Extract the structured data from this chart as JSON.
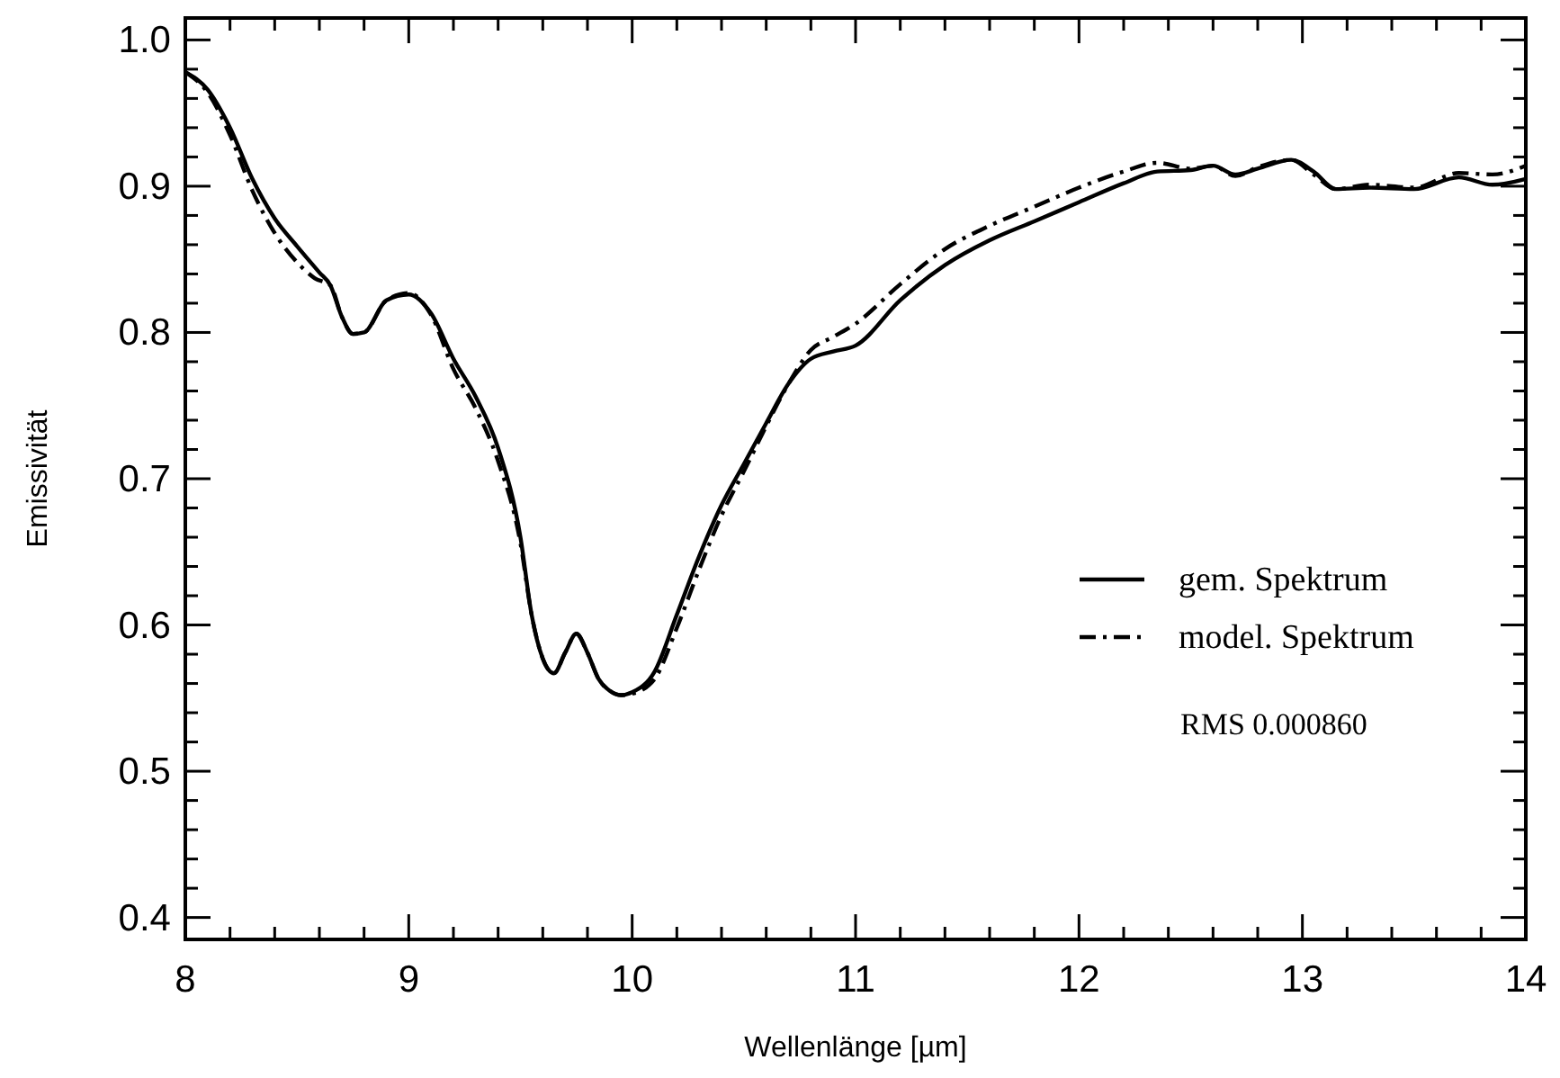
{
  "chart_data": {
    "type": "line",
    "xlabel": "Wellenlänge [µm]",
    "ylabel": "Emissivität",
    "xlim": [
      8,
      14
    ],
    "ylim": [
      0.385,
      1.015
    ],
    "xticks": [
      8,
      {
        "value": 8.2,
        "label": null
      },
      {
        "value": 8.4,
        "label": null
      },
      {
        "value": 8.6,
        "label": null
      },
      {
        "value": 8.8,
        "label": null
      },
      9,
      {
        "value": 9.2,
        "label": null
      },
      {
        "value": 9.4,
        "label": null
      },
      {
        "value": 9.6,
        "label": null
      },
      {
        "value": 9.8,
        "label": null
      },
      10,
      {
        "value": 10.2,
        "label": null
      },
      {
        "value": 10.4,
        "label": null
      },
      {
        "value": 10.6,
        "label": null
      },
      {
        "value": 10.8,
        "label": null
      },
      11,
      {
        "value": 11.2,
        "label": null
      },
      {
        "value": 11.4,
        "label": null
      },
      {
        "value": 11.6,
        "label": null
      },
      {
        "value": 11.8,
        "label": null
      },
      12,
      {
        "value": 12.2,
        "label": null
      },
      {
        "value": 12.4,
        "label": null
      },
      {
        "value": 12.6,
        "label": null
      },
      {
        "value": 12.8,
        "label": null
      },
      13,
      {
        "value": 13.2,
        "label": null
      },
      {
        "value": 13.4,
        "label": null
      },
      {
        "value": 13.6,
        "label": null
      },
      {
        "value": 13.8,
        "label": null
      },
      14
    ],
    "yticks": [
      0.4,
      {
        "value": 0.42,
        "label": null
      },
      {
        "value": 0.44,
        "label": null
      },
      {
        "value": 0.46,
        "label": null
      },
      {
        "value": 0.48,
        "label": null
      },
      0.5,
      {
        "value": 0.52,
        "label": null
      },
      {
        "value": 0.54,
        "label": null
      },
      {
        "value": 0.56,
        "label": null
      },
      {
        "value": 0.58,
        "label": null
      },
      0.6,
      {
        "value": 0.62,
        "label": null
      },
      {
        "value": 0.64,
        "label": null
      },
      {
        "value": 0.66,
        "label": null
      },
      {
        "value": 0.68,
        "label": null
      },
      0.7,
      {
        "value": 0.72,
        "label": null
      },
      {
        "value": 0.74,
        "label": null
      },
      {
        "value": 0.76,
        "label": null
      },
      {
        "value": 0.78,
        "label": null
      },
      0.8,
      {
        "value": 0.82,
        "label": null
      },
      {
        "value": 0.84,
        "label": null
      },
      {
        "value": 0.86,
        "label": null
      },
      {
        "value": 0.88,
        "label": null
      },
      0.9,
      {
        "value": 0.92,
        "label": null
      },
      {
        "value": 0.94,
        "label": null
      },
      {
        "value": 0.96,
        "label": null
      },
      {
        "value": 0.98,
        "label": null
      },
      {
        "value": 1.0,
        "label": "1.0"
      }
    ],
    "legend": "right",
    "annotations": [
      "RMS 0.000860"
    ],
    "series": [
      {
        "name": "gem. Spektrum",
        "color": "#000000",
        "line_style": "solid",
        "x": [
          8,
          8.1,
          8.2,
          8.3,
          8.4,
          8.5,
          8.6,
          8.65,
          8.7,
          8.75,
          8.8,
          8.9,
          9,
          9.1,
          9.2,
          9.3,
          9.4,
          9.5,
          9.55,
          9.6,
          9.65,
          9.7,
          9.75,
          9.8,
          9.85,
          9.9,
          9.95,
          10,
          10.1,
          10.2,
          10.3,
          10.4,
          10.5,
          10.6,
          10.7,
          10.8,
          10.9,
          11,
          11.2,
          11.4,
          11.6,
          11.8,
          12,
          12.2,
          12.35,
          12.5,
          12.6,
          12.7,
          12.8,
          12.95,
          13.05,
          13.15,
          13.3,
          13.5,
          13.7,
          13.85,
          14
        ],
        "values": [
          0.978,
          0.966,
          0.94,
          0.905,
          0.878,
          0.859,
          0.841,
          0.832,
          0.811,
          0.799,
          0.8,
          0.822,
          0.826,
          0.813,
          0.782,
          0.756,
          0.721,
          0.66,
          0.607,
          0.577,
          0.567,
          0.581,
          0.594,
          0.581,
          0.563,
          0.555,
          0.552,
          0.554,
          0.568,
          0.607,
          0.647,
          0.682,
          0.71,
          0.738,
          0.765,
          0.782,
          0.787,
          0.791,
          0.822,
          0.846,
          0.863,
          0.876,
          0.889,
          0.902,
          0.91,
          0.911,
          0.914,
          0.908,
          0.912,
          0.918,
          0.91,
          0.898,
          0.899,
          0.898,
          0.906,
          0.901,
          0.905
        ]
      },
      {
        "name": "model. Spektrum",
        "color": "#000000",
        "line_style": "dashdot",
        "x": [
          8,
          8.1,
          8.2,
          8.3,
          8.4,
          8.5,
          8.58,
          8.65,
          8.7,
          8.75,
          8.8,
          8.9,
          9,
          9.1,
          9.2,
          9.3,
          9.4,
          9.5,
          9.55,
          9.6,
          9.65,
          9.7,
          9.75,
          9.8,
          9.85,
          9.9,
          9.95,
          10,
          10.1,
          10.2,
          10.3,
          10.4,
          10.5,
          10.6,
          10.7,
          10.8,
          10.9,
          11,
          11.2,
          11.4,
          11.6,
          11.8,
          12,
          12.2,
          12.35,
          12.5,
          12.6,
          12.7,
          12.8,
          12.95,
          13.05,
          13.15,
          13.3,
          13.5,
          13.7,
          13.85,
          14
        ],
        "values": [
          0.978,
          0.964,
          0.935,
          0.897,
          0.868,
          0.848,
          0.837,
          0.832,
          0.811,
          0.799,
          0.8,
          0.822,
          0.827,
          0.812,
          0.775,
          0.748,
          0.712,
          0.656,
          0.607,
          0.577,
          0.567,
          0.581,
          0.594,
          0.581,
          0.563,
          0.555,
          0.552,
          0.553,
          0.563,
          0.598,
          0.638,
          0.675,
          0.705,
          0.736,
          0.765,
          0.788,
          0.797,
          0.806,
          0.833,
          0.857,
          0.873,
          0.886,
          0.899,
          0.91,
          0.916,
          0.912,
          0.914,
          0.907,
          0.913,
          0.918,
          0.908,
          0.898,
          0.901,
          0.899,
          0.909,
          0.908,
          0.914
        ]
      }
    ]
  }
}
